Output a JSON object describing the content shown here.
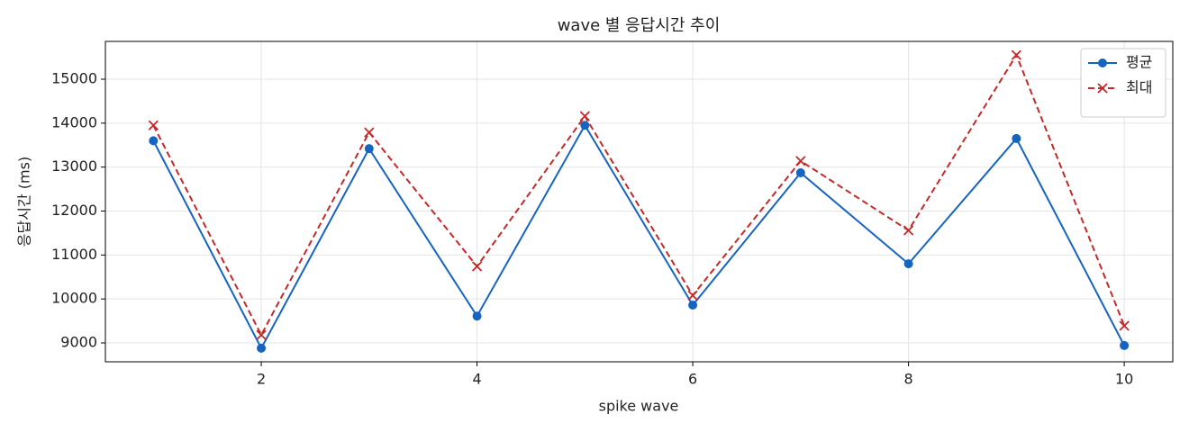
{
  "chart_data": {
    "type": "line",
    "title": "wave 별 응답시간 추이",
    "xlabel": "spike wave",
    "ylabel": "응답시간 (ms)",
    "x": [
      1,
      2,
      3,
      4,
      5,
      6,
      7,
      8,
      9,
      10
    ],
    "series": [
      {
        "name": "평균",
        "color": "#1565c0",
        "marker": "o",
        "linestyle": "solid",
        "values": [
          13600,
          8880,
          13420,
          9610,
          13950,
          9860,
          12870,
          10800,
          13650,
          8940
        ]
      },
      {
        "name": "최대",
        "color": "#c62828",
        "marker": "x",
        "linestyle": "dashed",
        "values": [
          13950,
          9180,
          13790,
          10740,
          14160,
          10080,
          13140,
          11560,
          15550,
          9390
        ]
      }
    ],
    "xlim": [
      0.555,
      10.45
    ],
    "xticks": [
      2,
      4,
      6,
      8,
      10
    ],
    "ylim": [
      8570,
      15860
    ],
    "yticks": [
      9000,
      10000,
      11000,
      12000,
      13000,
      14000,
      15000
    ],
    "grid": true,
    "legend": "upper right"
  }
}
